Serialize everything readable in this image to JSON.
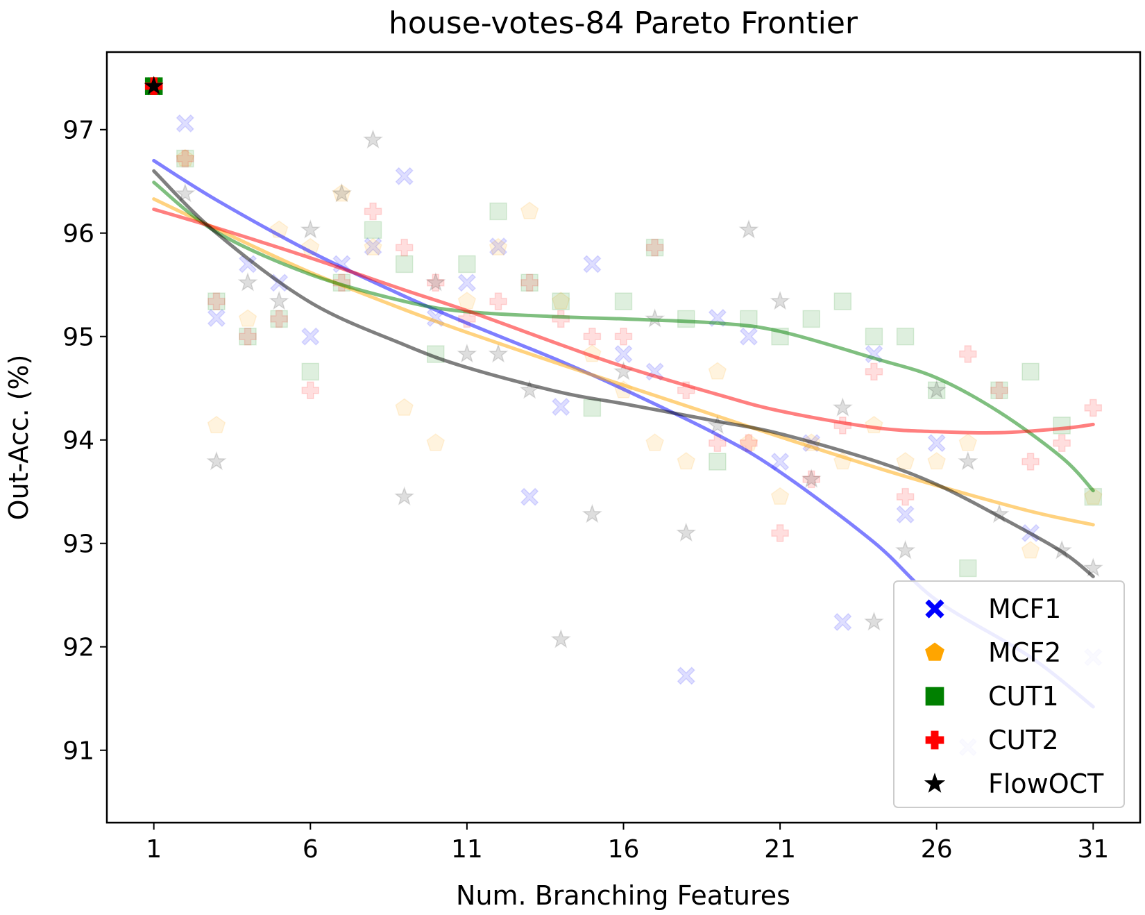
{
  "chart_data": {
    "type": "scatter",
    "title": "house-votes-84 Pareto Frontier",
    "xlabel": "Num. Branching Features",
    "ylabel": "Out-Acc. (%)",
    "xlim": [
      -0.5,
      32.5
    ],
    "ylim": [
      90.3,
      97.75
    ],
    "xticks": [
      1,
      6,
      11,
      16,
      21,
      26,
      31
    ],
    "yticks": [
      91,
      92,
      93,
      94,
      95,
      96,
      97
    ],
    "grid": false,
    "legend_position": "lower-right",
    "series": [
      {
        "name": "MCF1",
        "color": "#0000ff",
        "marker": "x",
        "points": [
          [
            1,
            97.42
          ],
          [
            2,
            97.06
          ],
          [
            3,
            95.18
          ],
          [
            4,
            95.7
          ],
          [
            5,
            95.52
          ],
          [
            6,
            95.0
          ],
          [
            7,
            95.7
          ],
          [
            8,
            95.87
          ],
          [
            9,
            96.55
          ],
          [
            10,
            95.18
          ],
          [
            11,
            95.52
          ],
          [
            12,
            95.87
          ],
          [
            13,
            93.45
          ],
          [
            14,
            94.32
          ],
          [
            15,
            95.7
          ],
          [
            16,
            94.83
          ],
          [
            17,
            94.66
          ],
          [
            18,
            91.72
          ],
          [
            19,
            95.18
          ],
          [
            20,
            95.0
          ],
          [
            21,
            93.79
          ],
          [
            22,
            93.97
          ],
          [
            23,
            92.24
          ],
          [
            24,
            94.83
          ],
          [
            25,
            93.28
          ],
          [
            26,
            93.97
          ],
          [
            27,
            91.03
          ],
          [
            29,
            93.1
          ],
          [
            31,
            91.9
          ]
        ],
        "trend": [
          [
            1,
            96.7
          ],
          [
            3,
            96.32
          ],
          [
            6,
            95.82
          ],
          [
            9,
            95.39
          ],
          [
            11,
            95.13
          ],
          [
            14,
            94.76
          ],
          [
            16,
            94.49
          ],
          [
            19,
            94.05
          ],
          [
            21,
            93.69
          ],
          [
            24,
            93.01
          ],
          [
            26,
            92.45
          ],
          [
            29,
            91.9
          ],
          [
            31,
            91.42
          ]
        ]
      },
      {
        "name": "MCF2",
        "color": "#ffa500",
        "marker": "pentagon",
        "points": [
          [
            1,
            97.42
          ],
          [
            2,
            96.72
          ],
          [
            3,
            94.14
          ],
          [
            4,
            95.17
          ],
          [
            5,
            96.03
          ],
          [
            6,
            95.86
          ],
          [
            7,
            96.38
          ],
          [
            8,
            95.86
          ],
          [
            9,
            94.31
          ],
          [
            10,
            93.97
          ],
          [
            11,
            95.34
          ],
          [
            12,
            95.86
          ],
          [
            13,
            96.21
          ],
          [
            14,
            95.34
          ],
          [
            15,
            94.83
          ],
          [
            16,
            94.48
          ],
          [
            17,
            93.97
          ],
          [
            18,
            93.79
          ],
          [
            19,
            94.66
          ],
          [
            20,
            93.97
          ],
          [
            21,
            93.45
          ],
          [
            22,
            93.97
          ],
          [
            23,
            93.79
          ],
          [
            24,
            94.14
          ],
          [
            25,
            93.79
          ],
          [
            26,
            93.79
          ],
          [
            27,
            93.97
          ],
          [
            29,
            92.93
          ],
          [
            31,
            93.45
          ]
        ],
        "trend": [
          [
            1,
            96.33
          ],
          [
            3,
            96.04
          ],
          [
            6,
            95.62
          ],
          [
            9,
            95.26
          ],
          [
            11,
            95.04
          ],
          [
            14,
            94.73
          ],
          [
            16,
            94.53
          ],
          [
            19,
            94.23
          ],
          [
            21,
            94.03
          ],
          [
            24,
            93.74
          ],
          [
            26,
            93.56
          ],
          [
            29,
            93.31
          ],
          [
            31,
            93.18
          ]
        ]
      },
      {
        "name": "CUT1",
        "color": "#008000",
        "marker": "square",
        "points": [
          [
            1,
            97.42
          ],
          [
            2,
            96.72
          ],
          [
            3,
            95.34
          ],
          [
            4,
            95.0
          ],
          [
            5,
            95.17
          ],
          [
            6,
            94.66
          ],
          [
            7,
            95.52
          ],
          [
            8,
            96.03
          ],
          [
            9,
            95.7
          ],
          [
            10,
            94.83
          ],
          [
            11,
            95.7
          ],
          [
            12,
            96.21
          ],
          [
            13,
            95.52
          ],
          [
            14,
            95.34
          ],
          [
            15,
            94.31
          ],
          [
            16,
            95.34
          ],
          [
            17,
            95.86
          ],
          [
            18,
            95.17
          ],
          [
            19,
            93.79
          ],
          [
            20,
            95.17
          ],
          [
            21,
            95.0
          ],
          [
            22,
            95.17
          ],
          [
            23,
            95.34
          ],
          [
            24,
            95.0
          ],
          [
            25,
            95.0
          ],
          [
            26,
            94.48
          ],
          [
            27,
            92.76
          ],
          [
            28,
            94.48
          ],
          [
            29,
            94.66
          ],
          [
            30,
            94.14
          ],
          [
            31,
            93.45
          ]
        ],
        "trend": [
          [
            1,
            96.49
          ],
          [
            3,
            96.01
          ],
          [
            6,
            95.6
          ],
          [
            9,
            95.34
          ],
          [
            11,
            95.24
          ],
          [
            14,
            95.19
          ],
          [
            16,
            95.17
          ],
          [
            19,
            95.13
          ],
          [
            21,
            95.05
          ],
          [
            24,
            94.79
          ],
          [
            26,
            94.6
          ],
          [
            28,
            94.27
          ],
          [
            30,
            93.83
          ],
          [
            31,
            93.51
          ]
        ]
      },
      {
        "name": "CUT2",
        "color": "#ff0000",
        "marker": "plus",
        "points": [
          [
            1,
            97.42
          ],
          [
            2,
            96.72
          ],
          [
            3,
            95.34
          ],
          [
            4,
            95.0
          ],
          [
            5,
            95.17
          ],
          [
            6,
            94.48
          ],
          [
            7,
            95.52
          ],
          [
            8,
            96.21
          ],
          [
            9,
            95.86
          ],
          [
            10,
            95.52
          ],
          [
            11,
            95.17
          ],
          [
            12,
            95.34
          ],
          [
            13,
            95.52
          ],
          [
            14,
            95.17
          ],
          [
            15,
            95.0
          ],
          [
            16,
            95.0
          ],
          [
            17,
            95.86
          ],
          [
            18,
            94.48
          ],
          [
            19,
            93.97
          ],
          [
            20,
            93.97
          ],
          [
            21,
            93.1
          ],
          [
            22,
            93.62
          ],
          [
            23,
            94.14
          ],
          [
            24,
            94.66
          ],
          [
            25,
            93.45
          ],
          [
            27,
            94.83
          ],
          [
            28,
            94.48
          ],
          [
            29,
            93.79
          ],
          [
            30,
            93.97
          ],
          [
            31,
            94.31
          ]
        ],
        "trend": [
          [
            1,
            96.23
          ],
          [
            3,
            96.05
          ],
          [
            6,
            95.76
          ],
          [
            9,
            95.45
          ],
          [
            11,
            95.25
          ],
          [
            14,
            94.92
          ],
          [
            16,
            94.71
          ],
          [
            19,
            94.44
          ],
          [
            21,
            94.28
          ],
          [
            24,
            94.12
          ],
          [
            26,
            94.08
          ],
          [
            28,
            94.07
          ],
          [
            30,
            94.11
          ],
          [
            31,
            94.15
          ]
        ]
      },
      {
        "name": "FlowOCT",
        "color": "#000000",
        "marker": "star",
        "points": [
          [
            1,
            97.42
          ],
          [
            2,
            96.38
          ],
          [
            3,
            93.79
          ],
          [
            4,
            95.52
          ],
          [
            5,
            95.34
          ],
          [
            6,
            96.03
          ],
          [
            7,
            96.38
          ],
          [
            8,
            96.9
          ],
          [
            9,
            93.45
          ],
          [
            10,
            95.52
          ],
          [
            11,
            94.83
          ],
          [
            12,
            94.83
          ],
          [
            13,
            94.48
          ],
          [
            14,
            92.07
          ],
          [
            15,
            93.28
          ],
          [
            16,
            94.66
          ],
          [
            17,
            95.17
          ],
          [
            18,
            93.1
          ],
          [
            19,
            94.14
          ],
          [
            20,
            96.03
          ],
          [
            21,
            95.34
          ],
          [
            22,
            93.62
          ],
          [
            23,
            94.31
          ],
          [
            24,
            92.24
          ],
          [
            25,
            92.93
          ],
          [
            26,
            94.48
          ],
          [
            27,
            93.79
          ],
          [
            28,
            93.28
          ],
          [
            30,
            92.93
          ],
          [
            31,
            92.76
          ]
        ],
        "trend": [
          [
            1,
            96.6
          ],
          [
            3,
            96.0
          ],
          [
            6,
            95.33
          ],
          [
            9,
            94.92
          ],
          [
            11,
            94.7
          ],
          [
            14,
            94.46
          ],
          [
            16,
            94.35
          ],
          [
            19,
            94.18
          ],
          [
            21,
            94.06
          ],
          [
            24,
            93.8
          ],
          [
            26,
            93.57
          ],
          [
            28,
            93.26
          ],
          [
            30,
            92.92
          ],
          [
            31,
            92.68
          ]
        ]
      }
    ]
  }
}
